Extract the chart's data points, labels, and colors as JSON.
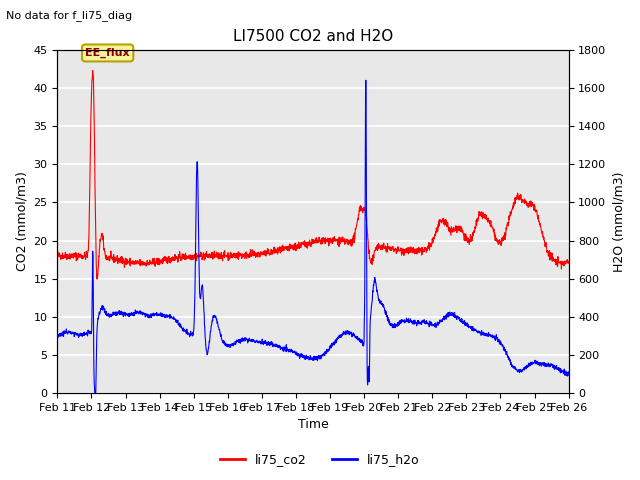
{
  "title": "LI7500 CO2 and H2O",
  "top_left_text": "No data for f_li75_diag",
  "xlabel": "Time",
  "ylabel_left": "CO2 (mmol/m3)",
  "ylabel_right": "H2O (mmol/m3)",
  "ylim_left": [
    0,
    45
  ],
  "ylim_right": [
    0,
    1800
  ],
  "yticks_left": [
    0,
    5,
    10,
    15,
    20,
    25,
    30,
    35,
    40,
    45
  ],
  "yticks_right": [
    0,
    200,
    400,
    600,
    800,
    1000,
    1200,
    1400,
    1600,
    1800
  ],
  "x_tick_labels": [
    "Feb 11",
    "Feb 12",
    "Feb 13",
    "Feb 14",
    "Feb 15",
    "Feb 16",
    "Feb 17",
    "Feb 18",
    "Feb 19",
    "Feb 20",
    "Feb 21",
    "Feb 22",
    "Feb 23",
    "Feb 24",
    "Feb 25",
    "Feb 26"
  ],
  "legend_entries": [
    "li75_co2",
    "li75_h2o"
  ],
  "legend_colors": [
    "red",
    "blue"
  ],
  "box_label": "EE_flux",
  "box_color": "#f5f5a0",
  "box_border": "#b8a000",
  "background_color": "#e8e8e8",
  "grid_color": "white",
  "co2_color": "red",
  "h2o_color": "blue",
  "co2_linewidth": 0.8,
  "h2o_linewidth": 0.8,
  "title_fontsize": 11,
  "label_fontsize": 9,
  "tick_fontsize": 8
}
